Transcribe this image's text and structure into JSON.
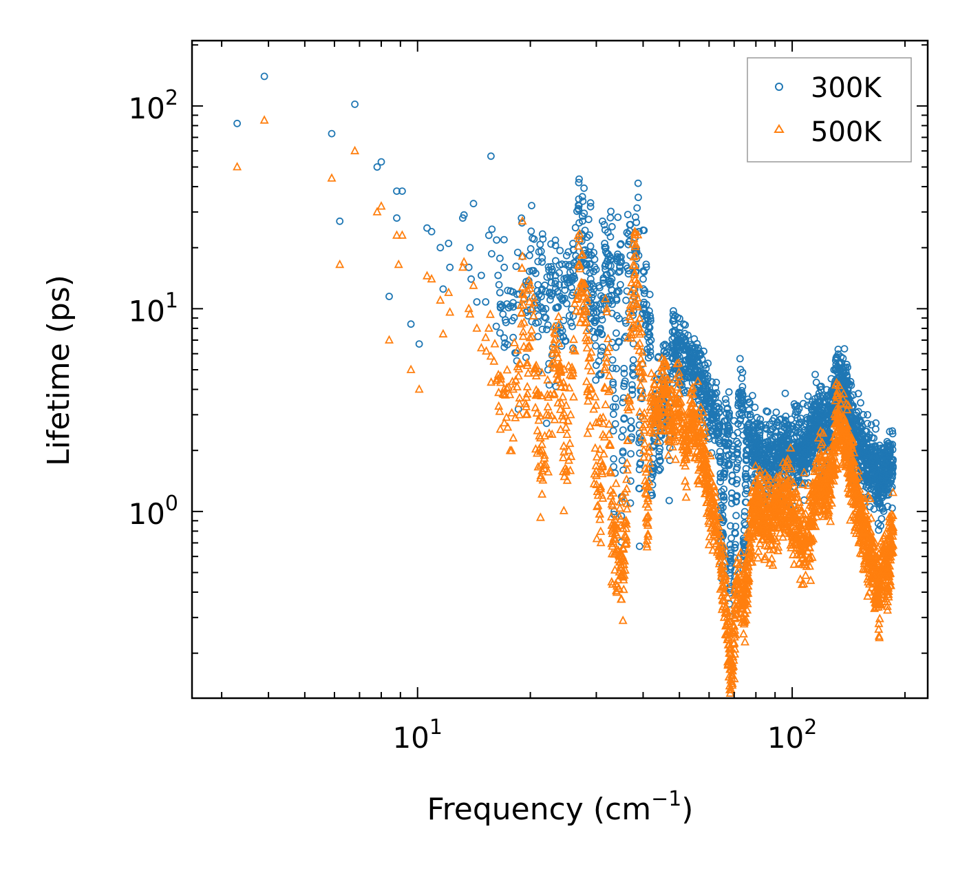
{
  "chart_data": {
    "type": "scatter",
    "title": "",
    "xlabel": "Frequency",
    "xlabel_unit": "(cm",
    "xlabel_unit_exp": "−1",
    "xlabel_unit_close": ")",
    "ylabel": "Lifetime (ps)",
    "xscale": "log",
    "yscale": "log",
    "xlim": [
      2.5,
      230
    ],
    "ylim": [
      0.12,
      210
    ],
    "x_tick_labels": [
      {
        "base": "10",
        "exp": "1",
        "value": 10
      },
      {
        "base": "10",
        "exp": "2",
        "value": 100
      }
    ],
    "y_tick_labels": [
      {
        "base": "10",
        "exp": "0",
        "value": 1
      },
      {
        "base": "10",
        "exp": "1",
        "value": 10
      },
      {
        "base": "10",
        "exp": "2",
        "value": 100
      }
    ],
    "legend_position": "top-right",
    "series": [
      {
        "name": "300K",
        "marker": "circle",
        "color": "#1f77b4",
        "points": [
          [
            3.3,
            82
          ],
          [
            3.9,
            140
          ],
          [
            5.9,
            73
          ],
          [
            6.2,
            27
          ],
          [
            6.8,
            102
          ],
          [
            7.8,
            50
          ],
          [
            8.0,
            53
          ],
          [
            8.4,
            11.5
          ],
          [
            8.8,
            28
          ],
          [
            8.8,
            38
          ],
          [
            9.1,
            38
          ],
          [
            9.6,
            8.4
          ],
          [
            10.1,
            6.7
          ],
          [
            10.6,
            25
          ],
          [
            10.9,
            24
          ],
          [
            11.5,
            20
          ],
          [
            11.7,
            12.5
          ],
          [
            12.1,
            21
          ],
          [
            12.2,
            16
          ],
          [
            13.2,
            28
          ],
          [
            13.3,
            29
          ],
          [
            13.7,
            16
          ],
          [
            13.8,
            20
          ],
          [
            13.9,
            14
          ],
          [
            14.1,
            33
          ],
          [
            14.4,
            10.8
          ],
          [
            14.8,
            14.6
          ],
          [
            15.2,
            10.8
          ],
          [
            15.5,
            23
          ],
          [
            16.4,
            14.6
          ],
          [
            16.9,
            9.4
          ],
          [
            17.4,
            12.3
          ],
          [
            18.0,
            10.2
          ],
          [
            18.7,
            11.8
          ],
          [
            19.0,
            26.5
          ],
          [
            19.5,
            9.6
          ],
          [
            19.9,
            18.3
          ],
          [
            20.4,
            15.4
          ],
          [
            20.9,
            11.1
          ],
          [
            21.5,
            12.5
          ],
          [
            22.0,
            9.0
          ],
          [
            23.0,
            11.9
          ],
          [
            24.0,
            11.5
          ],
          [
            25.0,
            10.6
          ],
          [
            26.0,
            12.0
          ],
          [
            27.0,
            26.5
          ],
          [
            28.0,
            19.5
          ],
          [
            29.0,
            14.0
          ],
          [
            30.0,
            9.0
          ],
          [
            31.0,
            7.5
          ],
          [
            32.0,
            18.7
          ],
          [
            33.0,
            14.0
          ],
          [
            34.0,
            12.0
          ],
          [
            35.0,
            17.0
          ],
          [
            36.0,
            11.0
          ],
          [
            37.0,
            26.0
          ],
          [
            38.0,
            19.5
          ],
          [
            39.0,
            24.0
          ],
          [
            40.0,
            14.0
          ],
          [
            41.0,
            9.0
          ],
          [
            42.0,
            7.0
          ],
          [
            44.0,
            5.8
          ],
          [
            46.0,
            6.0
          ],
          [
            48.0,
            6.5
          ],
          [
            50.0,
            5.8
          ],
          [
            52.0,
            5.0
          ],
          [
            54.0,
            5.4
          ],
          [
            56.0,
            4.5
          ],
          [
            58.0,
            4.0
          ],
          [
            60.0,
            3.4
          ],
          [
            62.0,
            3.0
          ],
          [
            64.0,
            2.6
          ],
          [
            66.0,
            2.2
          ],
          [
            68.0,
            2.5
          ],
          [
            70.0,
            2.8
          ],
          [
            72.0,
            3.8
          ],
          [
            74.0,
            3.2
          ],
          [
            76.0,
            2.6
          ],
          [
            78.0,
            2.2
          ],
          [
            80.0,
            2.0
          ],
          [
            84.0,
            1.9
          ],
          [
            88.0,
            1.8
          ],
          [
            92.0,
            1.9
          ],
          [
            96.0,
            2.0
          ],
          [
            100.0,
            1.9
          ],
          [
            104.0,
            2.0
          ],
          [
            108.0,
            2.1
          ],
          [
            112.0,
            2.4
          ],
          [
            116.0,
            2.7
          ],
          [
            120.0,
            2.8
          ],
          [
            124.0,
            2.5
          ],
          [
            128.0,
            3.0
          ],
          [
            132.0,
            4.4
          ],
          [
            136.0,
            4.0
          ],
          [
            140.0,
            3.8
          ],
          [
            144.0,
            2.6
          ],
          [
            148.0,
            2.2
          ],
          [
            152.0,
            2.1
          ],
          [
            156.0,
            1.9
          ],
          [
            160.0,
            1.7
          ],
          [
            165.0,
            1.6
          ],
          [
            170.0,
            1.4
          ],
          [
            175.0,
            1.5
          ],
          [
            180.0,
            1.7
          ],
          [
            185.0,
            1.6
          ],
          [
            33.5,
            1.0
          ],
          [
            35.0,
            0.95
          ],
          [
            37.0,
            1.1
          ],
          [
            39.0,
            1.3
          ],
          [
            42.0,
            1.2
          ],
          [
            44.0,
            1.6
          ],
          [
            47.0,
            2.2
          ],
          [
            65.0,
            0.5
          ],
          [
            68.0,
            0.35
          ],
          [
            70.0,
            0.45
          ],
          [
            74.0,
            0.52
          ]
        ]
      },
      {
        "name": "500K",
        "marker": "triangle",
        "color": "#ff7f0e",
        "points": [
          [
            3.3,
            50
          ],
          [
            3.9,
            85
          ],
          [
            5.9,
            44
          ],
          [
            6.2,
            16.5
          ],
          [
            6.8,
            60
          ],
          [
            7.8,
            30
          ],
          [
            8.0,
            32
          ],
          [
            8.4,
            7.0
          ],
          [
            8.8,
            23
          ],
          [
            8.9,
            16.5
          ],
          [
            9.1,
            23
          ],
          [
            9.6,
            5.0
          ],
          [
            10.1,
            4.0
          ],
          [
            10.6,
            14.5
          ],
          [
            10.9,
            14.0
          ],
          [
            11.5,
            11.0
          ],
          [
            11.7,
            7.5
          ],
          [
            12.1,
            12.0
          ],
          [
            12.2,
            9.6
          ],
          [
            13.2,
            16.0
          ],
          [
            13.3,
            17.0
          ],
          [
            13.7,
            10.0
          ],
          [
            13.8,
            9.4
          ],
          [
            14.1,
            13.0
          ],
          [
            14.4,
            8.0
          ],
          [
            14.8,
            6.4
          ],
          [
            15.2,
            7.2
          ],
          [
            15.5,
            8.0
          ],
          [
            16.0,
            5.5
          ],
          [
            16.4,
            4.5
          ],
          [
            16.9,
            3.8
          ],
          [
            17.4,
            2.6
          ],
          [
            18.0,
            4.0
          ],
          [
            18.7,
            3.4
          ],
          [
            19.0,
            15.8
          ],
          [
            19.5,
            3.0
          ],
          [
            19.9,
            10.8
          ],
          [
            20.4,
            9.2
          ],
          [
            20.9,
            2.5
          ],
          [
            21.5,
            2.0
          ],
          [
            22.0,
            1.7
          ],
          [
            23.0,
            6.0
          ],
          [
            24.0,
            5.0
          ],
          [
            25.0,
            1.6
          ],
          [
            26.0,
            4.8
          ],
          [
            27.0,
            16.3
          ],
          [
            28.0,
            8.5
          ],
          [
            29.0,
            4.0
          ],
          [
            30.0,
            1.5
          ],
          [
            31.0,
            1.2
          ],
          [
            32.0,
            10.0
          ],
          [
            33.0,
            0.8
          ],
          [
            34.0,
            0.65
          ],
          [
            35.0,
            0.6
          ],
          [
            36.0,
            0.75
          ],
          [
            37.0,
            10.0
          ],
          [
            38.0,
            15.0
          ],
          [
            39.0,
            8.0
          ],
          [
            40.0,
            4.5
          ],
          [
            41.0,
            0.72
          ],
          [
            42.0,
            3.5
          ],
          [
            44.0,
            3.2
          ],
          [
            46.0,
            4.0
          ],
          [
            48.0,
            2.5
          ],
          [
            50.0,
            3.8
          ],
          [
            52.0,
            2.0
          ],
          [
            54.0,
            3.0
          ],
          [
            56.0,
            2.2
          ],
          [
            58.0,
            1.8
          ],
          [
            60.0,
            1.2
          ],
          [
            62.0,
            0.9
          ],
          [
            64.0,
            0.6
          ],
          [
            66.0,
            0.4
          ],
          [
            68.0,
            0.2
          ],
          [
            69.0,
            0.15
          ],
          [
            70.0,
            0.25
          ],
          [
            72.0,
            0.45
          ],
          [
            74.0,
            0.3
          ],
          [
            76.0,
            0.5
          ],
          [
            78.0,
            0.9
          ],
          [
            80.0,
            1.1
          ],
          [
            84.0,
            0.9
          ],
          [
            88.0,
            0.95
          ],
          [
            92.0,
            1.0
          ],
          [
            96.0,
            1.1
          ],
          [
            100.0,
            0.95
          ],
          [
            104.0,
            0.8
          ],
          [
            108.0,
            0.7
          ],
          [
            112.0,
            0.85
          ],
          [
            116.0,
            1.3
          ],
          [
            120.0,
            1.5
          ],
          [
            124.0,
            1.2
          ],
          [
            128.0,
            1.6
          ],
          [
            132.0,
            3.0
          ],
          [
            136.0,
            2.5
          ],
          [
            140.0,
            2.0
          ],
          [
            144.0,
            1.6
          ],
          [
            148.0,
            1.2
          ],
          [
            152.0,
            0.9
          ],
          [
            156.0,
            0.8
          ],
          [
            160.0,
            0.7
          ],
          [
            165.0,
            0.55
          ],
          [
            170.0,
            0.35
          ],
          [
            175.0,
            0.6
          ],
          [
            180.0,
            0.5
          ],
          [
            185.0,
            0.8
          ]
        ]
      }
    ]
  }
}
